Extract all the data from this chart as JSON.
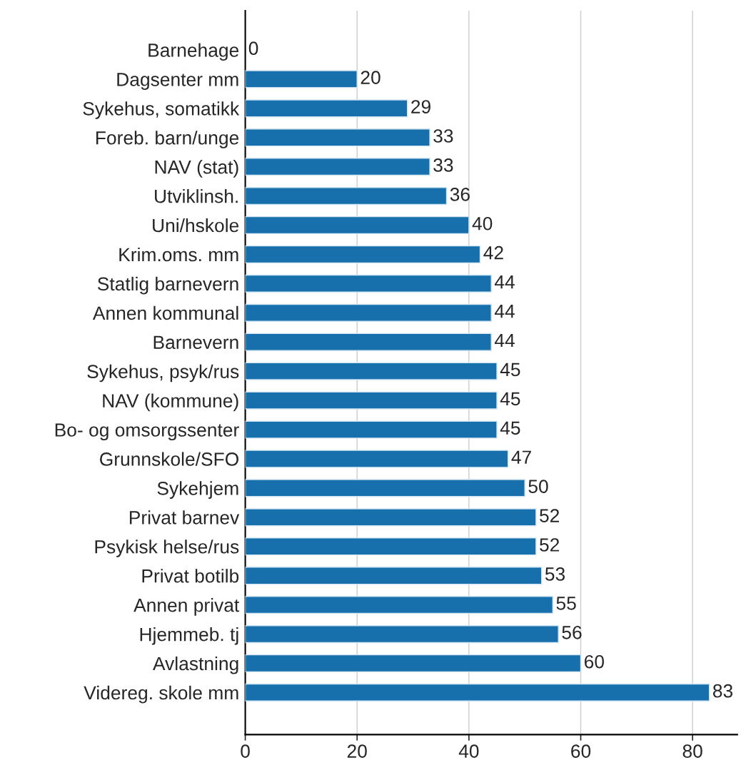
{
  "chart_data": {
    "type": "bar",
    "orientation": "horizontal",
    "categories": [
      "Barnehage",
      "Dagsenter mm",
      "Sykehus, somatikk",
      "Foreb. barn/unge",
      "NAV (stat)",
      "Utviklinsh.",
      "Uni/hskole",
      "Krim.oms. mm",
      "Statlig barnevern",
      "Annen kommunal",
      "Barnevern",
      "Sykehus, psyk/rus",
      "NAV (kommune)",
      "Bo- og omsorgssenter",
      "Grunnskole/SFO",
      "Sykehjem",
      "Privat barnev",
      "Psykisk helse/rus",
      "Privat botilb",
      "Annen privat",
      "Hjemmeb. tj",
      "Avlastning",
      "Videreg. skole mm"
    ],
    "values": [
      0,
      20,
      29,
      33,
      33,
      36,
      40,
      42,
      44,
      44,
      44,
      45,
      45,
      45,
      47,
      50,
      52,
      52,
      53,
      55,
      56,
      60,
      83
    ],
    "color": "#1770ab",
    "xlim": [
      0,
      88
    ],
    "xticks": [
      0,
      20,
      40,
      60,
      80
    ],
    "grid": "x",
    "data_labels": true
  }
}
